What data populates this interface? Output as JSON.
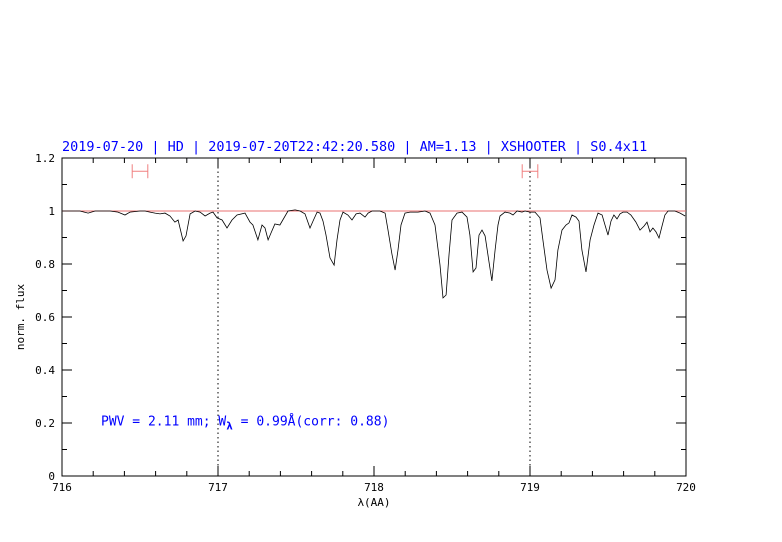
{
  "chart_data": {
    "type": "line",
    "title": "2019-07-20 | HD | 2019-07-20T22:42:20.580 | AM=1.13 | XSHOOTER | S0.4x11",
    "xlabel": "λ(AA)",
    "ylabel": "norm. flux",
    "xlim": [
      716,
      720
    ],
    "ylim": [
      0,
      1.2
    ],
    "x_ticks": [
      "716",
      "717",
      "718",
      "719",
      "720"
    ],
    "y_ticks": [
      "0",
      "0.2",
      "0.4",
      "0.6",
      "0.8",
      "1",
      "1.2"
    ],
    "grid": false,
    "reference_line": {
      "y": 1.0,
      "color": "#e87070"
    },
    "vertical_dotted_lines": [
      717,
      719
    ],
    "error_bars": [
      {
        "x": 716.5,
        "xerr": 0.05,
        "y": 1.15
      },
      {
        "x": 719.0,
        "xerr": 0.05,
        "y": 1.15
      }
    ],
    "annotation": {
      "text_before": "PWV = 2.11 mm; W",
      "subscript": "λ",
      "text_after": " = 0.99Å(corr: 0.88)",
      "x": 716.25,
      "y": 0.19
    },
    "colors": {
      "title": "#0000ff",
      "annotation": "#0000ff",
      "spectrum": "#000000",
      "error_bar": "#f08080"
    },
    "series": [
      {
        "x": [
          716.0,
          716.051,
          716.115,
          716.167,
          716.212,
          716.308,
          716.359,
          716.404,
          716.436,
          716.5,
          716.532,
          716.564,
          716.596,
          716.628,
          716.66,
          716.692,
          716.724,
          716.744,
          716.776,
          716.795,
          716.821,
          716.853,
          716.885,
          716.917,
          716.949,
          716.968,
          716.994,
          717.026,
          717.058,
          717.09,
          717.122,
          717.173,
          717.205,
          717.224,
          717.256,
          717.282,
          717.301,
          717.321,
          717.34,
          717.365,
          717.397,
          717.449,
          717.494,
          717.526,
          717.558,
          717.59,
          717.609,
          717.635,
          717.654,
          717.673,
          717.692,
          717.718,
          717.744,
          717.763,
          717.782,
          717.801,
          717.833,
          717.859,
          717.885,
          717.91,
          717.942,
          717.962,
          717.987,
          718.038,
          718.071,
          718.09,
          718.115,
          718.135,
          718.154,
          718.173,
          718.199,
          718.231,
          718.282,
          718.327,
          718.359,
          718.391,
          718.423,
          718.442,
          718.462,
          718.481,
          718.5,
          718.532,
          718.564,
          718.596,
          718.615,
          718.635,
          718.654,
          718.673,
          718.692,
          718.712,
          718.737,
          718.756,
          718.776,
          718.795,
          718.808,
          718.84,
          718.872,
          718.891,
          718.917,
          718.949,
          718.968,
          719.0,
          719.032,
          719.064,
          719.083,
          719.109,
          719.135,
          719.16,
          719.179,
          719.205,
          719.231,
          719.25,
          719.269,
          719.295,
          719.314,
          719.333,
          719.359,
          719.385,
          719.41,
          719.436,
          719.462,
          719.481,
          719.5,
          719.519,
          719.538,
          719.558,
          719.577,
          719.596,
          719.622,
          719.647,
          719.679,
          719.705,
          719.731,
          719.75,
          719.769,
          719.788,
          719.808,
          719.827,
          719.846,
          719.865,
          719.885,
          719.929,
          719.962,
          719.994
        ],
        "y": [
          1.0,
          1.0,
          1.0,
          0.992,
          1.0,
          1.0,
          0.996,
          0.985,
          0.996,
          1.0,
          1.0,
          0.996,
          0.992,
          0.989,
          0.992,
          0.981,
          0.958,
          0.966,
          0.887,
          0.906,
          0.989,
          1.0,
          0.996,
          0.981,
          0.992,
          0.996,
          0.974,
          0.966,
          0.936,
          0.966,
          0.985,
          0.992,
          0.958,
          0.947,
          0.891,
          0.947,
          0.936,
          0.891,
          0.917,
          0.951,
          0.947,
          1.0,
          1.004,
          1.0,
          0.989,
          0.936,
          0.962,
          0.996,
          0.992,
          0.962,
          0.909,
          0.823,
          0.796,
          0.891,
          0.966,
          0.996,
          0.985,
          0.966,
          0.989,
          0.992,
          0.977,
          0.992,
          1.0,
          1.0,
          0.992,
          0.928,
          0.838,
          0.777,
          0.853,
          0.947,
          0.992,
          0.996,
          0.996,
          1.0,
          0.992,
          0.947,
          0.796,
          0.672,
          0.683,
          0.834,
          0.966,
          0.992,
          0.996,
          0.977,
          0.909,
          0.77,
          0.785,
          0.909,
          0.928,
          0.906,
          0.808,
          0.736,
          0.853,
          0.947,
          0.981,
          0.996,
          0.992,
          0.985,
          1.0,
          0.996,
          1.0,
          0.996,
          0.996,
          0.974,
          0.891,
          0.777,
          0.709,
          0.74,
          0.853,
          0.928,
          0.947,
          0.955,
          0.985,
          0.977,
          0.962,
          0.853,
          0.77,
          0.891,
          0.947,
          0.992,
          0.985,
          0.947,
          0.909,
          0.962,
          0.985,
          0.97,
          0.989,
          0.996,
          0.996,
          0.985,
          0.958,
          0.928,
          0.943,
          0.958,
          0.921,
          0.936,
          0.921,
          0.898,
          0.943,
          0.985,
          1.0,
          1.0,
          0.992,
          0.981
        ]
      }
    ]
  }
}
